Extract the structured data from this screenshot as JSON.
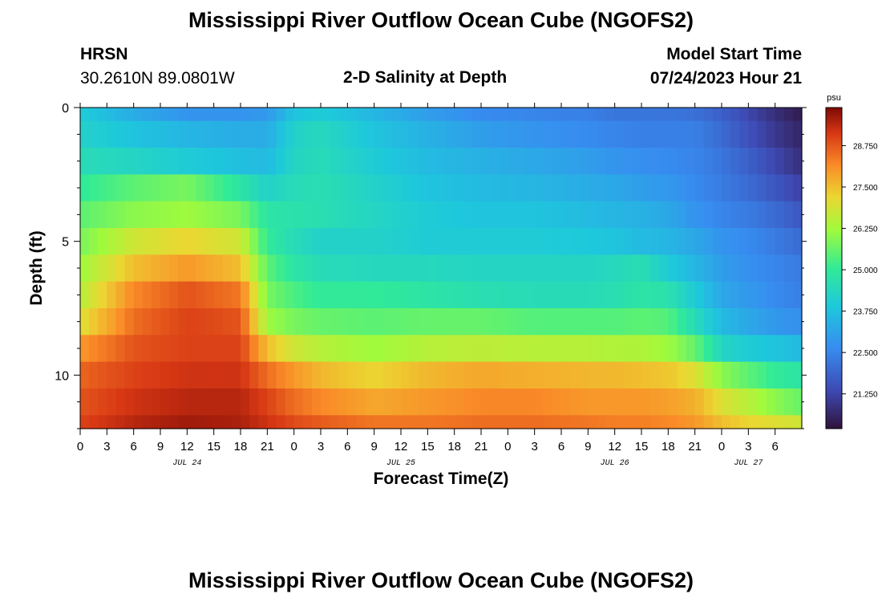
{
  "header": {
    "title": "Mississippi River Outflow Ocean Cube (NGOFS2)",
    "station": "HRSN",
    "coordinates": "30.2610N  89.0801W",
    "plot_title": "2-D Salinity at Depth",
    "model_start_label": "Model Start Time",
    "model_start_value": "07/24/2023 Hour 21"
  },
  "footer": {
    "title": "Mississippi River Outflow Ocean Cube (NGOFS2)"
  },
  "chart_data": {
    "type": "heatmap",
    "xlabel": "Forecast Time(Z)",
    "ylabel": "Depth (ft)",
    "x_tick_labels": [
      "0",
      "3",
      "6",
      "9",
      "12",
      "15",
      "18",
      "21",
      "0",
      "3",
      "6",
      "9",
      "12",
      "15",
      "18",
      "21",
      "0",
      "3",
      "6",
      "9",
      "12",
      "15",
      "18",
      "21",
      "0",
      "3",
      "6"
    ],
    "date_labels": [
      {
        "label": "JUL 24",
        "tick_index": 4
      },
      {
        "label": "JUL 25",
        "tick_index": 12
      },
      {
        "label": "JUL 26",
        "tick_index": 20
      },
      {
        "label": "JUL 27",
        "tick_index": 25
      }
    ],
    "y_ticks": [
      0,
      5,
      10
    ],
    "ylim": [
      12,
      0
    ],
    "colorbar": {
      "unit": "psu",
      "ticks": [
        21.25,
        22.5,
        23.75,
        25.0,
        26.25,
        27.5,
        28.75
      ],
      "tick_labels": [
        "21.250",
        "22.500",
        "23.750",
        "25.000",
        "26.250",
        "27.500",
        "28.750"
      ],
      "range": [
        20.2,
        29.9
      ]
    },
    "depth_layer_bounds_ft": [
      0,
      0.5,
      1.5,
      2.5,
      3.5,
      4.5,
      5.5,
      6.5,
      7.5,
      8.5,
      9.5,
      10.5,
      11.5,
      12
    ],
    "time_knots_hours": [
      0,
      6,
      12,
      18,
      21,
      24,
      27,
      33,
      39,
      45,
      51,
      57,
      60,
      63,
      66,
      69,
      72,
      75,
      78,
      81
    ],
    "salinity_psu": [
      [
        24.0,
        23.3,
        22.8,
        22.8,
        22.9,
        23.8,
        24.0,
        23.5,
        23.0,
        22.6,
        22.5,
        22.4,
        22.2,
        22.2,
        22.2,
        22.1,
        21.8,
        21.3,
        20.8,
        20.4
      ],
      [
        24.2,
        23.8,
        23.5,
        23.3,
        23.3,
        24.2,
        24.4,
        23.8,
        23.4,
        23.0,
        22.8,
        22.6,
        22.5,
        22.4,
        22.4,
        22.4,
        22.0,
        21.5,
        21.0,
        20.6
      ],
      [
        24.5,
        24.3,
        24.0,
        23.7,
        23.6,
        24.3,
        24.5,
        24.0,
        23.6,
        23.4,
        23.2,
        23.0,
        22.8,
        22.7,
        22.6,
        22.5,
        22.2,
        21.8,
        21.3,
        20.8
      ],
      [
        25.0,
        25.5,
        25.8,
        24.8,
        24.2,
        24.5,
        24.6,
        24.2,
        23.8,
        23.6,
        23.5,
        23.3,
        23.2,
        23.0,
        22.9,
        22.6,
        22.3,
        22.0,
        21.6,
        21.2
      ],
      [
        25.5,
        26.0,
        26.2,
        25.8,
        24.8,
        24.7,
        24.6,
        24.3,
        24.0,
        23.8,
        23.8,
        23.6,
        23.5,
        23.4,
        23.2,
        22.8,
        22.5,
        22.3,
        22.0,
        21.6
      ],
      [
        25.8,
        26.8,
        27.2,
        26.8,
        25.0,
        24.5,
        24.2,
        24.2,
        24.0,
        24.0,
        24.0,
        23.9,
        23.8,
        23.6,
        23.5,
        23.2,
        22.8,
        22.6,
        22.3,
        22.0
      ],
      [
        26.2,
        27.5,
        28.0,
        27.5,
        25.5,
        24.8,
        24.5,
        24.4,
        24.4,
        24.3,
        24.3,
        24.3,
        24.4,
        24.6,
        24.0,
        23.5,
        23.0,
        22.7,
        22.5,
        22.3
      ],
      [
        26.5,
        28.2,
        28.8,
        28.4,
        25.8,
        25.3,
        25.0,
        25.0,
        24.8,
        24.6,
        24.5,
        24.5,
        24.6,
        24.8,
        24.7,
        24.0,
        23.2,
        22.9,
        22.6,
        22.4
      ],
      [
        27.0,
        28.5,
        29.0,
        28.8,
        26.2,
        25.8,
        25.6,
        25.5,
        25.6,
        25.6,
        25.4,
        25.4,
        25.4,
        25.5,
        25.4,
        24.5,
        23.6,
        23.2,
        22.9,
        22.7
      ],
      [
        28.0,
        28.8,
        29.0,
        29.0,
        27.5,
        26.8,
        26.5,
        26.2,
        26.5,
        26.6,
        26.5,
        26.5,
        26.4,
        26.4,
        26.2,
        25.6,
        24.3,
        24.0,
        23.8,
        23.6
      ],
      [
        28.6,
        29.0,
        29.2,
        29.2,
        28.5,
        28.0,
        27.6,
        27.2,
        27.6,
        27.8,
        27.7,
        27.6,
        27.6,
        27.5,
        27.4,
        27.0,
        26.0,
        25.5,
        25.0,
        24.8
      ],
      [
        28.8,
        29.2,
        29.4,
        29.4,
        29.0,
        28.5,
        28.2,
        27.8,
        28.0,
        28.2,
        28.2,
        28.0,
        28.0,
        28.0,
        27.9,
        27.7,
        27.0,
        26.5,
        26.0,
        25.6
      ],
      [
        29.0,
        29.4,
        29.6,
        29.5,
        29.2,
        28.9,
        28.7,
        28.4,
        28.4,
        28.5,
        28.5,
        28.4,
        28.3,
        28.3,
        28.2,
        28.0,
        27.5,
        27.2,
        27.0,
        26.8
      ]
    ]
  }
}
